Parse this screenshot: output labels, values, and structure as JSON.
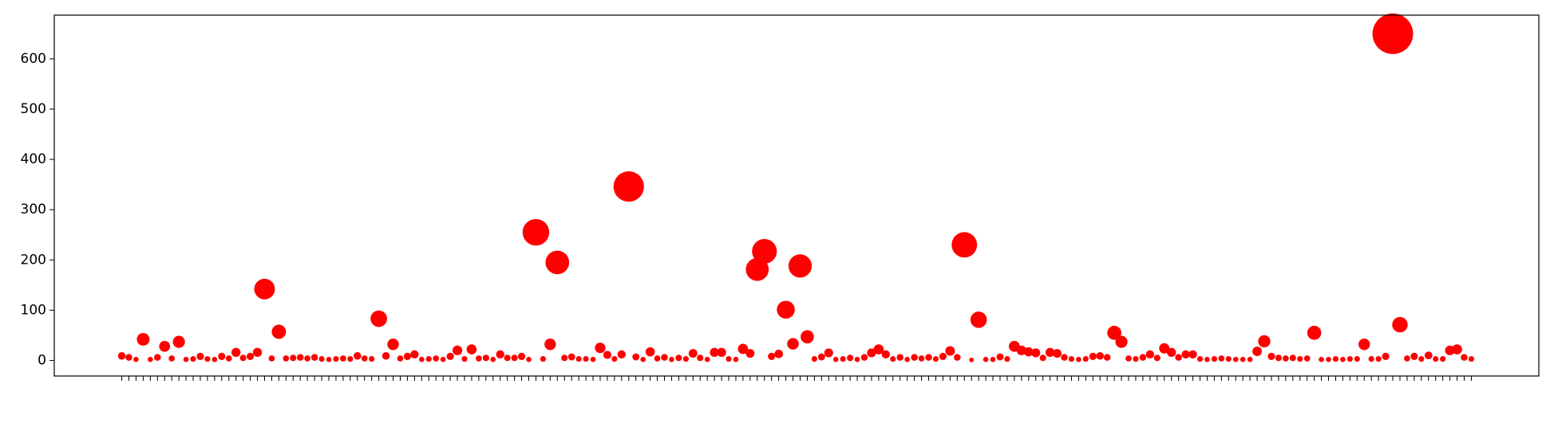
{
  "chart_data": {
    "type": "scatter",
    "color": "#ff0000",
    "categories": [
      null,
      null,
      null,
      null,
      null,
      null,
      null,
      null,
      null,
      null,
      null,
      null,
      null,
      null,
      null,
      null,
      null,
      null,
      null,
      null,
      null,
      null,
      null,
      null,
      null,
      null,
      null,
      null,
      null,
      null,
      null,
      null,
      null,
      null,
      null,
      null,
      null,
      null,
      null,
      null,
      null,
      null,
      null,
      null,
      null,
      null,
      null,
      null,
      null,
      null,
      null,
      null,
      null,
      null,
      null,
      null,
      null,
      null,
      null,
      null,
      null,
      null,
      null,
      null,
      null,
      null,
      null,
      null,
      null,
      null,
      null,
      null,
      null,
      null,
      null,
      null,
      null,
      null,
      null,
      null,
      null,
      null,
      null,
      null,
      null,
      null,
      null,
      null,
      null,
      null,
      null,
      null,
      null,
      null,
      null,
      null,
      null,
      null,
      null,
      null,
      null,
      null,
      null,
      null,
      null,
      null,
      null,
      null,
      null,
      null,
      null,
      null,
      null,
      null,
      null,
      null,
      null,
      null,
      null,
      null,
      null,
      null,
      null,
      null,
      null,
      null,
      null,
      null,
      null,
      null,
      null,
      null,
      null,
      null,
      null,
      null,
      null,
      null,
      null,
      null,
      null,
      null,
      null,
      null,
      null,
      null,
      null,
      null,
      null,
      null,
      null,
      null,
      null,
      null,
      null,
      null,
      null,
      null,
      null,
      null,
      null,
      null,
      null,
      null,
      null,
      null,
      null,
      null,
      null,
      null,
      null,
      null,
      null,
      null,
      null,
      null,
      null,
      null,
      null,
      null,
      null,
      null,
      null,
      null,
      null,
      null,
      null,
      null,
      null,
      null
    ],
    "values": [
      9,
      6,
      2,
      42,
      2,
      6,
      28,
      4,
      37,
      2,
      3,
      8,
      3,
      2,
      8,
      4,
      16,
      5,
      8,
      16,
      142,
      4,
      57,
      4,
      5,
      6,
      4,
      6,
      3,
      2,
      3,
      4,
      3,
      9,
      4,
      3,
      83,
      9,
      32,
      4,
      8,
      12,
      2,
      3,
      4,
      2,
      8,
      20,
      3,
      22,
      4,
      5,
      2,
      12,
      5,
      5,
      8,
      2,
      255,
      3,
      32,
      195,
      5,
      7,
      3,
      3,
      2,
      25,
      11,
      3,
      12,
      346,
      7,
      2,
      17,
      4,
      6,
      2,
      5,
      3,
      14,
      5,
      2,
      16,
      16,
      3,
      2,
      23,
      14,
      181,
      217,
      8,
      13,
      101,
      33,
      188,
      47,
      3,
      7,
      15,
      2,
      3,
      5,
      2,
      6,
      15,
      22,
      12,
      3,
      6,
      2,
      6,
      4,
      6,
      3,
      8,
      19,
      6,
      230,
      1,
      81,
      2,
      2,
      7,
      3,
      28,
      20,
      17,
      15,
      5,
      16,
      14,
      6,
      3,
      2,
      3,
      8,
      9,
      6,
      55,
      37,
      4,
      3,
      6,
      12,
      5,
      24,
      16,
      6,
      12,
      12,
      3,
      2,
      3,
      4,
      3,
      2,
      2,
      2,
      18,
      38,
      8,
      5,
      4,
      5,
      3,
      4,
      55,
      2,
      2,
      3,
      2,
      3,
      3,
      32,
      3,
      3,
      8,
      650,
      71,
      4,
      8,
      3,
      10,
      3,
      3,
      20,
      22,
      6,
      3
    ],
    "ylim": [
      -31,
      687
    ],
    "yticks": [
      0,
      100,
      200,
      300,
      400,
      500,
      600
    ]
  }
}
